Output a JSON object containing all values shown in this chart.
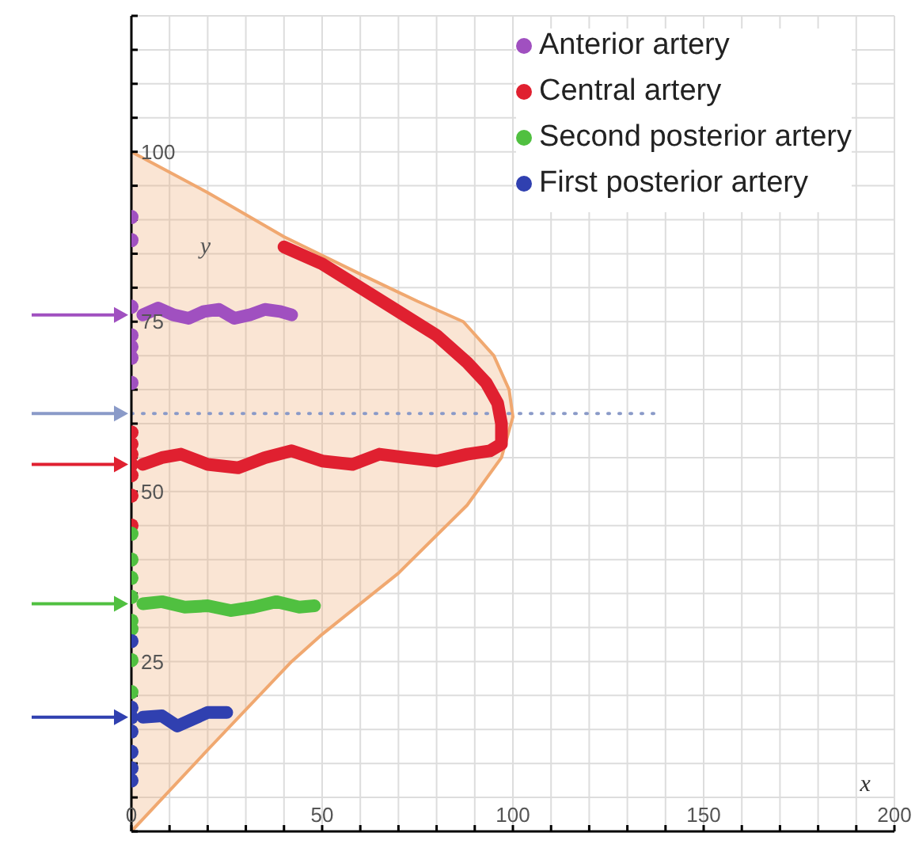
{
  "chart_data": {
    "type": "line",
    "xlabel": "x",
    "ylabel": "y",
    "xlim": [
      0,
      200
    ],
    "ylim": [
      0,
      120
    ],
    "xticks": [
      0,
      {
        "value": 10,
        "label": null
      },
      {
        "value": 20,
        "label": null
      },
      {
        "value": 30,
        "label": null
      },
      {
        "value": 40,
        "label": null
      },
      50,
      {
        "value": 60,
        "label": null
      },
      {
        "value": 70,
        "label": null
      },
      {
        "value": 80,
        "label": null
      },
      {
        "value": 90,
        "label": null
      },
      100,
      {
        "value": 110,
        "label": null
      },
      {
        "value": 120,
        "label": null
      },
      {
        "value": 130,
        "label": null
      },
      {
        "value": 140,
        "label": null
      },
      150,
      {
        "value": 160,
        "label": null
      },
      {
        "value": 170,
        "label": null
      },
      {
        "value": 180,
        "label": null
      },
      {
        "value": 190,
        "label": null
      },
      200
    ],
    "yticks": [
      {
        "value": 0,
        "label": null
      },
      {
        "value": 5,
        "label": null
      },
      {
        "value": 10,
        "label": null
      },
      {
        "value": 15,
        "label": null
      },
      {
        "value": 20,
        "label": null
      },
      25,
      {
        "value": 30,
        "label": null
      },
      {
        "value": 35,
        "label": null
      },
      {
        "value": 40,
        "label": null
      },
      {
        "value": 45,
        "label": null
      },
      50,
      {
        "value": 55,
        "label": null
      },
      {
        "value": 60,
        "label": null
      },
      {
        "value": 65,
        "label": null
      },
      {
        "value": 70,
        "label": null
      },
      75,
      {
        "value": 80,
        "label": null
      },
      {
        "value": 85,
        "label": null
      },
      {
        "value": 90,
        "label": null
      },
      {
        "value": 95,
        "label": null
      },
      100,
      {
        "value": 105,
        "label": null
      },
      {
        "value": 110,
        "label": null
      },
      {
        "value": 115,
        "label": null
      },
      {
        "value": 120,
        "label": null
      }
    ],
    "grid": true,
    "legend": "top right",
    "series": [
      {
        "type": "area",
        "color": "#f0a870",
        "x": [
          0,
          20,
          42,
          50,
          70,
          88,
          97,
          100,
          99,
          95,
          87,
          75,
          60,
          40,
          20,
          0
        ],
        "values": [
          0,
          12,
          25,
          29,
          38,
          48,
          55,
          61,
          65,
          70,
          75,
          78,
          82,
          87.5,
          94,
          100
        ]
      },
      {
        "type": "line",
        "line_style": "dotted",
        "marker": "none",
        "color": "#8a9ac8",
        "x": [
          0,
          137
        ],
        "values": [
          61.5,
          61.5
        ]
      },
      {
        "type": "line",
        "name": "Anterior artery",
        "marker": "none",
        "color": "#a050c0",
        "x": [
          3,
          7,
          11,
          15,
          19,
          23,
          27,
          31,
          35,
          39,
          42
        ],
        "values": [
          76,
          77,
          76,
          75.5,
          76.5,
          76.8,
          75.5,
          76,
          76.8,
          76.5,
          76
        ]
      },
      {
        "type": "line",
        "name": "Central artery",
        "marker": "none",
        "color": "#e02030",
        "x": [
          40,
          50,
          60,
          70,
          80,
          88,
          93,
          96,
          97,
          97,
          94,
          88,
          80,
          72,
          65,
          58,
          50,
          42,
          35,
          28,
          20,
          13,
          8,
          3
        ],
        "values": [
          86,
          83.5,
          80,
          76.5,
          73,
          69,
          66,
          63,
          60,
          57,
          56,
          55.5,
          54.5,
          55,
          55.5,
          54,
          54.5,
          56,
          55,
          53.5,
          54,
          55.5,
          55,
          54
        ]
      },
      {
        "type": "line",
        "name": "Second posterior artery",
        "marker": "none",
        "color": "#50c040",
        "x": [
          3,
          8,
          14,
          20,
          26,
          32,
          38,
          44,
          48
        ],
        "values": [
          33.5,
          33.8,
          33,
          33.2,
          32.5,
          33,
          33.8,
          33,
          33.2
        ]
      },
      {
        "type": "line",
        "name": "First posterior artery",
        "marker": "none",
        "color": "#3040b0",
        "x": [
          3,
          8,
          12,
          16,
          20,
          25
        ],
        "values": [
          16.8,
          17,
          15.5,
          16.5,
          17.5,
          17.5
        ]
      },
      {
        "type": "scatter",
        "marker": "circle",
        "color": "#a050c0",
        "x": [
          0,
          0,
          0,
          0,
          0,
          0,
          0
        ],
        "values": [
          90.4,
          87,
          77.2,
          73,
          71.3,
          69.7,
          66
        ]
      },
      {
        "type": "scatter",
        "marker": "circle",
        "color": "#e02030",
        "x": [
          0,
          0,
          0,
          0,
          0,
          0,
          0
        ],
        "values": [
          58.7,
          57,
          55.5,
          54,
          52.4,
          49.4,
          45
        ]
      },
      {
        "type": "scatter",
        "marker": "circle",
        "color": "#50c040",
        "x": [
          0,
          0,
          0,
          0,
          0,
          0,
          0,
          0
        ],
        "values": [
          43.8,
          40,
          37.3,
          34.5,
          31,
          29.8,
          25.2,
          20.5
        ]
      },
      {
        "type": "scatter",
        "marker": "circle",
        "color": "#3040b0",
        "x": [
          0,
          0,
          0,
          0,
          0,
          0,
          0
        ],
        "values": [
          28,
          18.2,
          16.8,
          14.7,
          11.7,
          9.3,
          7.5
        ]
      }
    ]
  }
}
